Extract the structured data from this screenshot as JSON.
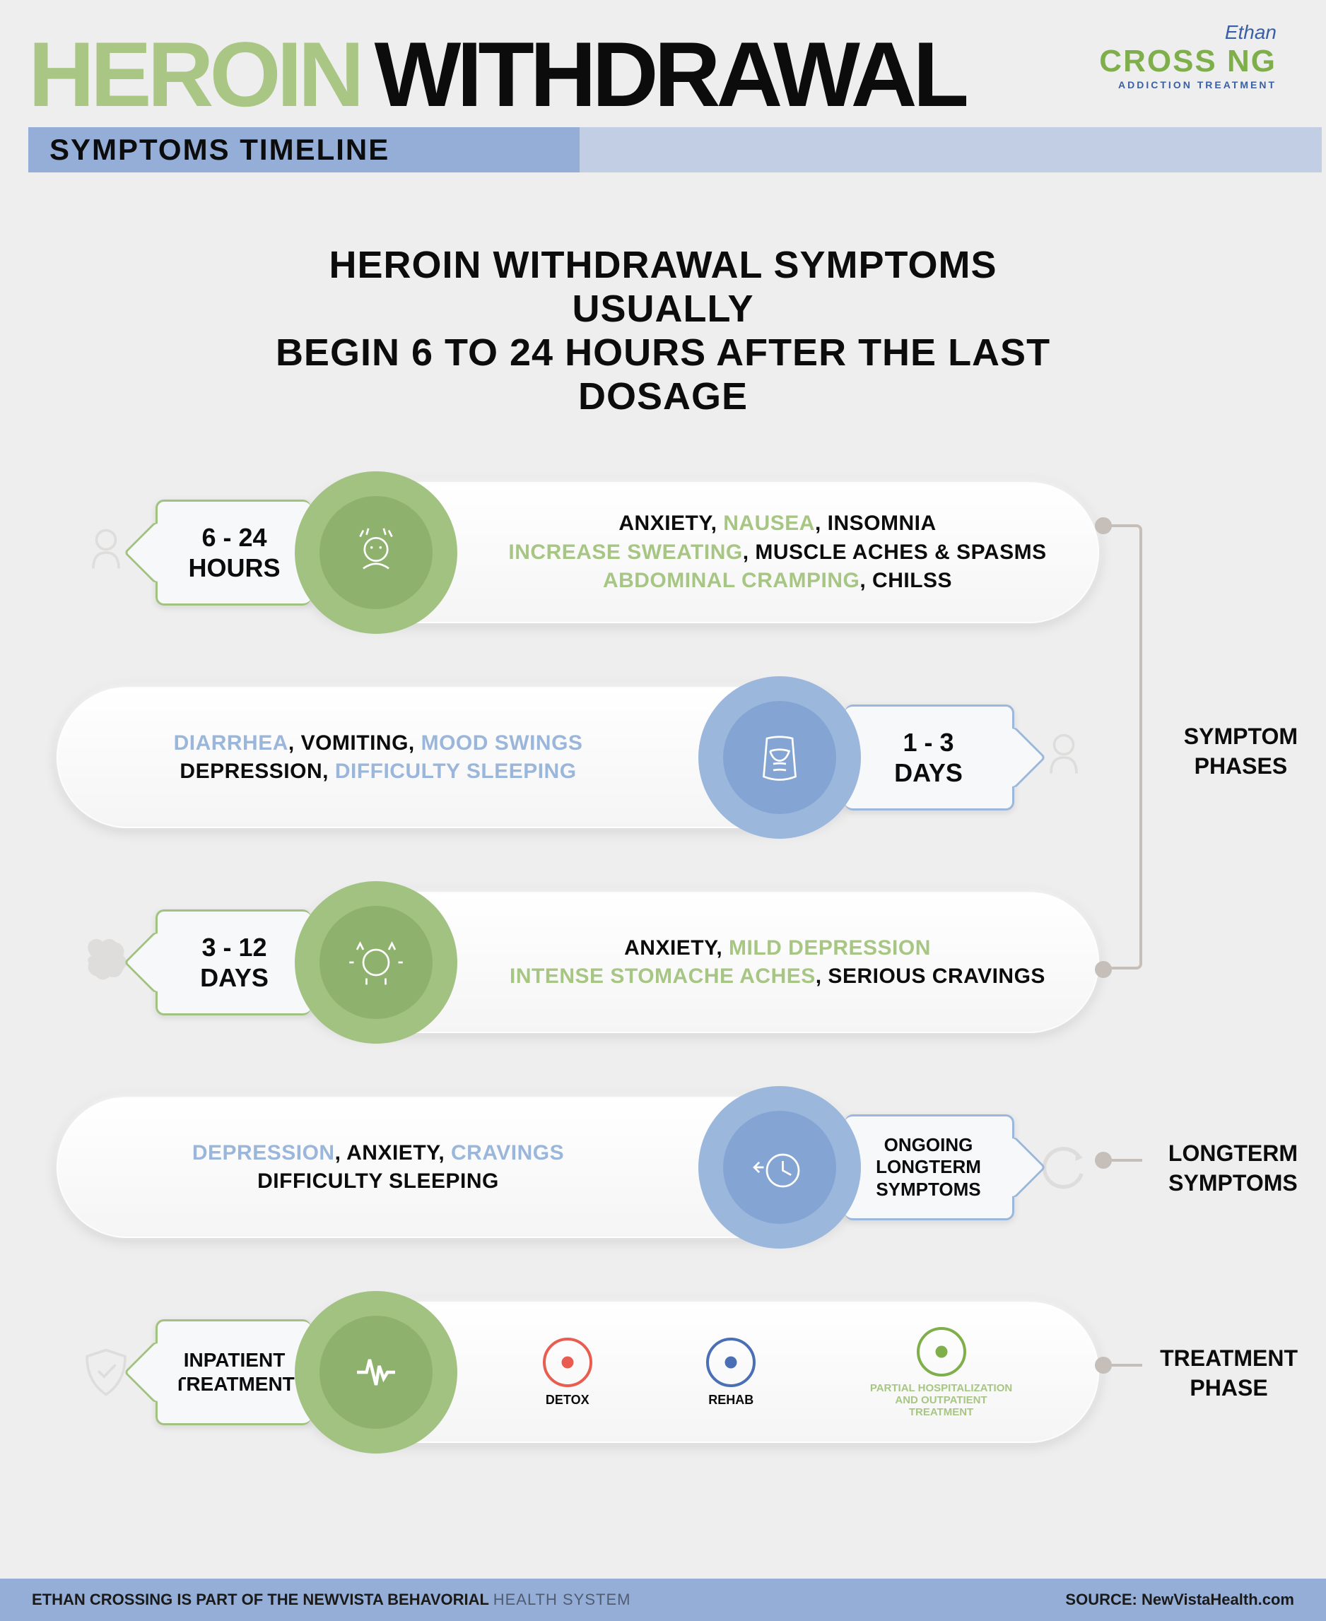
{
  "colors": {
    "title_word1": "#a9c685",
    "title_word2": "#0c0c0c",
    "subtitle_bar_bg": "#94aed8",
    "subtitle_text": "#0c0c0c",
    "logo_top": "#3b5fa5",
    "logo_main": "#7faf4b",
    "logo_sub": "#3b5fa5",
    "intro_text": "#0c0c0c",
    "green": "#a2c282",
    "green_dark": "#8eb26d",
    "blue": "#9cb7dc",
    "blue_dark": "#84a5d3",
    "text_black": "#0c0c0c",
    "hl_green": "#a7c683",
    "hl_blue": "#9ab6db",
    "side_icon": "#c5beb9",
    "connector": "#c5beb9",
    "footer_bg": "#94aed8",
    "footer_text": "#1a1a1a",
    "page_bg": "#eeeeee"
  },
  "title_word1": "HEROIN",
  "title_word2": "WITHDRAWAL",
  "subtitle": "SYMPTOMS TIMELINE",
  "logo": {
    "top": "Ethan",
    "main": "CROSS   NG",
    "sub": "ADDICTION TREATMENT"
  },
  "intro_line1": "HEROIN WITHDRAWAL SYMPTOMS USUALLY",
  "intro_line2": "BEGIN 6 TO 24 HOURS AFTER THE LAST DOSAGE",
  "phases": [
    {
      "time": "6 - 24\nHOURS",
      "side": "left",
      "color": "green",
      "symptoms": [
        {
          "t": "ANXIETY, ",
          "c": "black"
        },
        {
          "t": "NAUSEA",
          "c": "green"
        },
        {
          "t": ", INSOMNIA",
          "c": "black"
        },
        {
          "br": true
        },
        {
          "t": "INCREASE SWEATING",
          "c": "green"
        },
        {
          "t": ", MUSCLE ACHES & SPASMS",
          "c": "black"
        },
        {
          "br": true
        },
        {
          "t": "ABDOMINAL CRAMPING",
          "c": "green"
        },
        {
          "t": ", CHILSS",
          "c": "black"
        }
      ]
    },
    {
      "time": "1 - 3\nDAYS",
      "side": "right",
      "color": "blue",
      "symptoms": [
        {
          "t": "DIARRHEA",
          "c": "blue"
        },
        {
          "t": ", VOMITING, ",
          "c": "black"
        },
        {
          "t": "MOOD SWINGS",
          "c": "blue"
        },
        {
          "br": true
        },
        {
          "t": "DEPRESSION, ",
          "c": "black"
        },
        {
          "t": "DIFFICULTY SLEEPING",
          "c": "blue"
        }
      ]
    },
    {
      "time": "3 - 12\nDAYS",
      "side": "left",
      "color": "green",
      "symptoms": [
        {
          "t": "ANXIETY, ",
          "c": "black"
        },
        {
          "t": "MILD DEPRESSION",
          "c": "green"
        },
        {
          "br": true
        },
        {
          "t": "INTENSE STOMACHE ACHES",
          "c": "green"
        },
        {
          "t": ", SERIOUS CRAVINGS",
          "c": "black"
        }
      ]
    },
    {
      "time": "ONGOING\nLONGTERM\nSYMPTOMS",
      "side": "right",
      "color": "blue",
      "symptoms": [
        {
          "t": "DEPRESSION",
          "c": "blue"
        },
        {
          "t": ", ANXIETY, ",
          "c": "black"
        },
        {
          "t": "CRAVINGS",
          "c": "blue"
        },
        {
          "br": true
        },
        {
          "t": "DIFFICULTY SLEEPING",
          "c": "black"
        }
      ]
    },
    {
      "time": "INPATIENT\nTREATMENT",
      "side": "left",
      "color": "green",
      "is_treatment": true
    }
  ],
  "treatment_items": [
    {
      "label": "DETOX",
      "icon_color": "#e85d4f"
    },
    {
      "label": "REHAB",
      "icon_color": "#4a6fb5"
    },
    {
      "label": "PARTIAL HOSPITALIZATION\nAND OUTPATIENT\nTREATMENT",
      "icon_color": "#7faf4b",
      "wide": true
    }
  ],
  "phase_labels": {
    "symptom_phases": "SYMPTOM\nPHASES",
    "longterm": "LONGTERM\nSYMPTOMS",
    "treatment": "TREATMENT\nPHASE"
  },
  "footer": {
    "left": "ETHAN CROSSING IS PART OF  THE NEWVISTA BEHAVORIAL",
    "left_light": "HEALTH SYSTEM",
    "right": "SOURCE: NewVistaHealth.com"
  }
}
